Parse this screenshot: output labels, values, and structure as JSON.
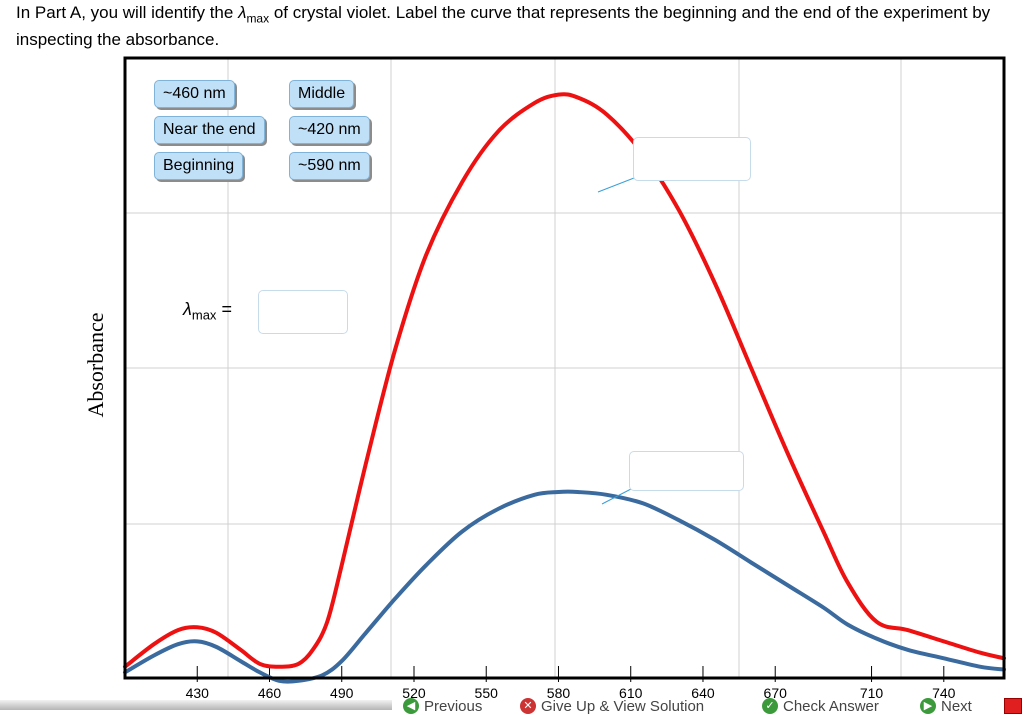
{
  "instructions": {
    "pre": "In Part A, you will identify the ",
    "lambda_symbol": "λ",
    "lambda_sub": "max",
    "post": " of crystal violet. Label the curve that represents the beginning and the end of the experiment by inspecting the absorbance."
  },
  "label_tiles": [
    "~460 nm",
    "Middle",
    "Near the end",
    "~420 nm",
    "Beginning",
    "~590 nm"
  ],
  "lambda_field": {
    "symbol": "λ",
    "sub": "max",
    "equals": "="
  },
  "footer": {
    "previous": "Previous",
    "give_up": "Give Up & View Solution",
    "check_answer": "Check Answer",
    "next": "Next"
  },
  "colors": {
    "curve_red": "#ee1111",
    "curve_blue": "#3a6a9e",
    "tile_bg": "#bfe0f7"
  },
  "chart_data": {
    "type": "line",
    "xlabel": "",
    "ylabel": "Absorbance",
    "xlim": [
      400,
      765
    ],
    "ylim": [
      0,
      1.1
    ],
    "xticks": [
      430,
      460,
      490,
      520,
      550,
      580,
      610,
      640,
      670,
      710,
      740
    ],
    "grid": true,
    "series": [
      {
        "color": "#ee1111",
        "x": [
          400,
          412,
          422,
          430,
          438,
          448,
          456,
          464,
          472,
          478,
          484,
          490,
          500,
          512,
          525,
          540,
          555,
          570,
          580,
          588,
          600,
          615,
          630,
          645,
          660,
          675,
          690,
          700,
          712,
          725,
          740,
          755,
          765
        ],
        "y": [
          0.02,
          0.06,
          0.085,
          0.09,
          0.08,
          0.05,
          0.025,
          0.02,
          0.025,
          0.05,
          0.1,
          0.2,
          0.38,
          0.58,
          0.75,
          0.88,
          0.97,
          1.02,
          1.035,
          1.03,
          1.0,
          0.93,
          0.83,
          0.7,
          0.55,
          0.4,
          0.26,
          0.17,
          0.1,
          0.085,
          0.065,
          0.045,
          0.035
        ]
      },
      {
        "color": "#3a6a9e",
        "x": [
          400,
          412,
          422,
          430,
          438,
          448,
          456,
          464,
          472,
          482,
          490,
          500,
          512,
          525,
          540,
          555,
          570,
          580,
          588,
          600,
          615,
          630,
          645,
          660,
          675,
          690,
          700,
          712,
          725,
          740,
          755,
          765
        ],
        "y": [
          0.01,
          0.04,
          0.06,
          0.065,
          0.055,
          0.03,
          0.01,
          -0.005,
          -0.005,
          0.005,
          0.03,
          0.08,
          0.14,
          0.2,
          0.26,
          0.3,
          0.325,
          0.33,
          0.33,
          0.325,
          0.31,
          0.28,
          0.245,
          0.205,
          0.165,
          0.125,
          0.095,
          0.07,
          0.05,
          0.035,
          0.02,
          0.015
        ]
      }
    ]
  }
}
